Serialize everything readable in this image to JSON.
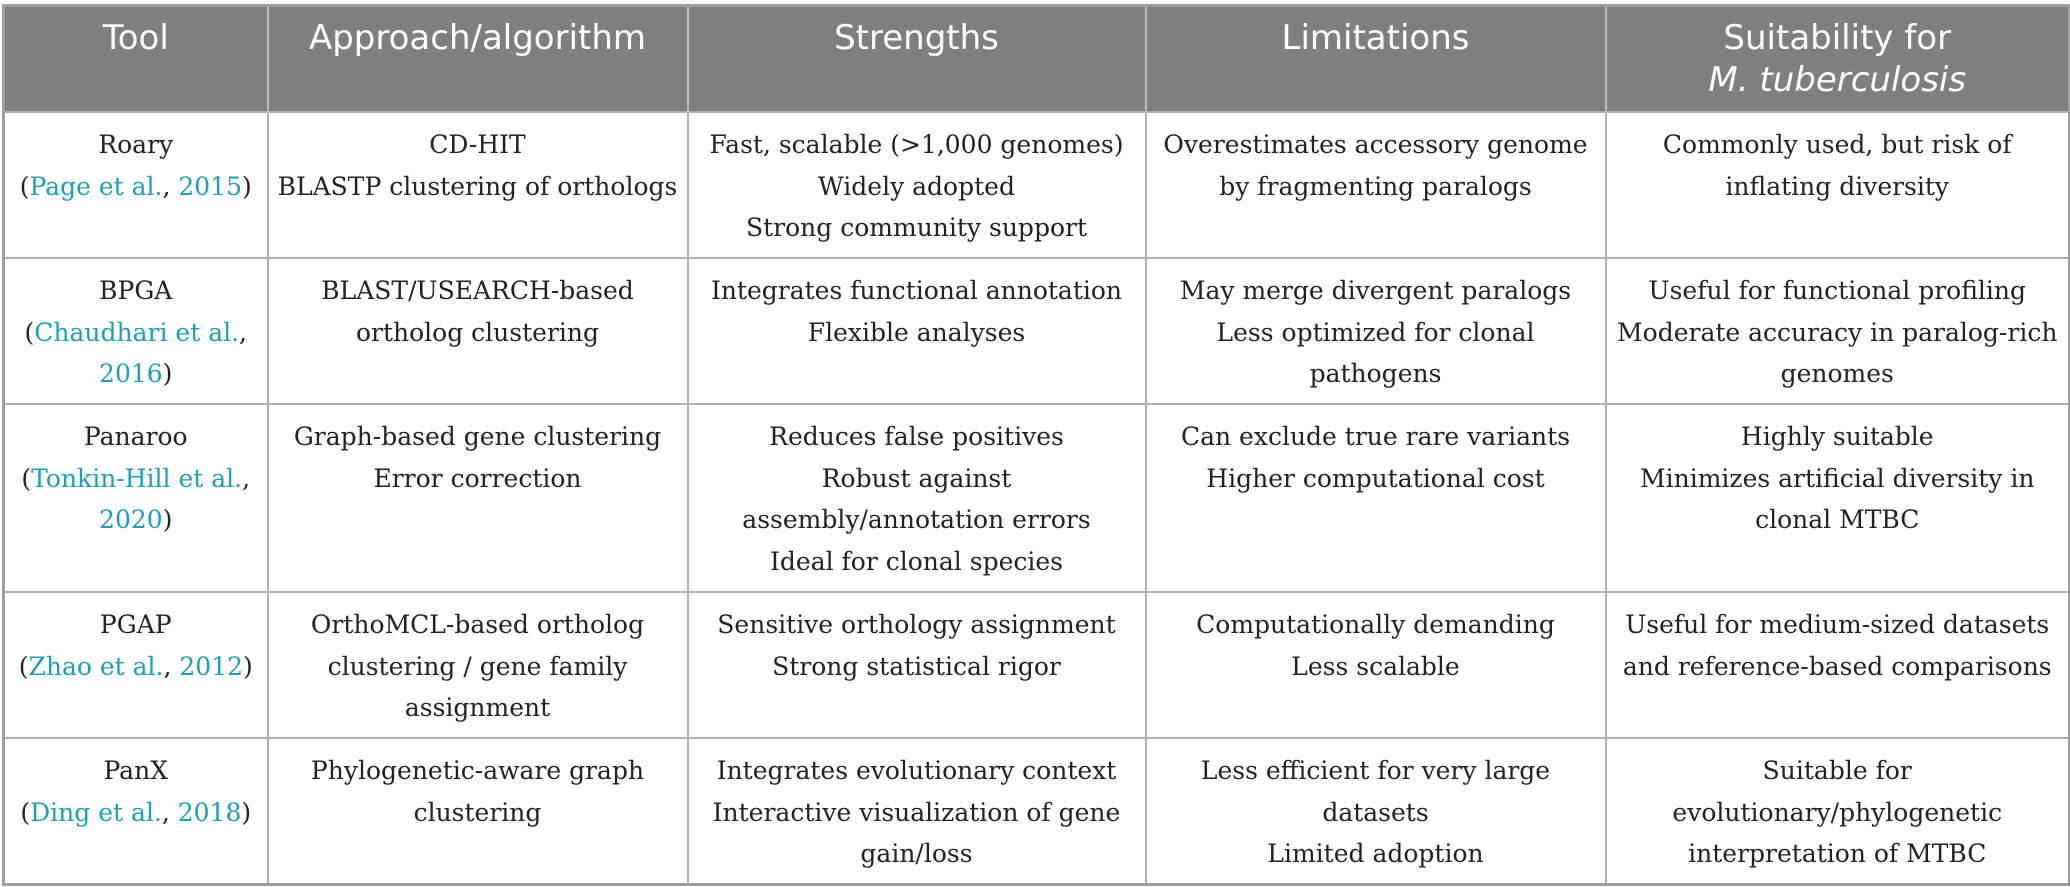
{
  "headers": {
    "tool": "Tool",
    "approach": "Approach/algorithm",
    "strengths": "Strengths",
    "limitations": "Limitations",
    "suitability_line1": "Suitability for",
    "suitability_line2": "M. tuberculosis"
  },
  "rows": [
    {
      "tool": "Roary",
      "cite_open": "(",
      "cite_author": "Page et al.",
      "cite_sep": ", ",
      "cite_year": "2015",
      "cite_close": ")",
      "approach": [
        "CD-HIT",
        "BLASTP clustering of orthologs"
      ],
      "strengths": [
        "Fast, scalable (>1,000 genomes)",
        "Widely adopted",
        "Strong community support"
      ],
      "limitations": [
        "Overestimates accessory genome by fragmenting paralogs"
      ],
      "suitability": [
        "Commonly used, but risk of inflating diversity"
      ]
    },
    {
      "tool": "BPGA",
      "cite_open": "(",
      "cite_author": "Chaudhari et al.",
      "cite_sep": ", ",
      "cite_year": "2016",
      "cite_close": ")",
      "approach": [
        "BLAST/USEARCH-based ortholog clustering"
      ],
      "strengths": [
        "Integrates functional annotation",
        "Flexible analyses"
      ],
      "limitations": [
        "May merge divergent paralogs",
        "Less optimized for clonal pathogens"
      ],
      "suitability": [
        "Useful for functional profiling",
        "Moderate accuracy in paralog-rich genomes"
      ]
    },
    {
      "tool": "Panaroo",
      "cite_open": "(",
      "cite_author": "Tonkin-Hill et al.",
      "cite_sep": ", ",
      "cite_year": "2020",
      "cite_close": ")",
      "approach": [
        "Graph-based gene clustering",
        "Error correction"
      ],
      "strengths": [
        "Reduces false positives",
        "Robust against assembly/annotation errors",
        "Ideal for clonal species"
      ],
      "limitations": [
        "Can exclude true rare variants",
        "Higher computational cost"
      ],
      "suitability": [
        "Highly suitable",
        "Minimizes artificial diversity in clonal MTBC"
      ]
    },
    {
      "tool": "PGAP",
      "cite_open": "(",
      "cite_author": "Zhao et al.",
      "cite_sep": ", ",
      "cite_year": "2012",
      "cite_close": ")",
      "approach": [
        "OrthoMCL-based ortholog clustering / gene family assignment"
      ],
      "strengths": [
        "Sensitive orthology assignment",
        "Strong statistical rigor"
      ],
      "limitations": [
        "Computationally demanding",
        "Less scalable"
      ],
      "suitability": [
        "Useful for medium-sized datasets and reference-based comparisons"
      ]
    },
    {
      "tool": "PanX",
      "cite_open": "(",
      "cite_author": "Ding et al.",
      "cite_sep": ", ",
      "cite_year": "2018",
      "cite_close": ")",
      "approach": [
        "Phylogenetic-aware graph clustering"
      ],
      "strengths": [
        "Integrates evolutionary context",
        "Interactive visualization of gene gain/loss"
      ],
      "limitations": [
        "Less efficient for very large datasets",
        "Limited adoption"
      ],
      "suitability": [
        "Suitable for evolutionary/phylogenetic interpretation of MTBC"
      ]
    }
  ]
}
